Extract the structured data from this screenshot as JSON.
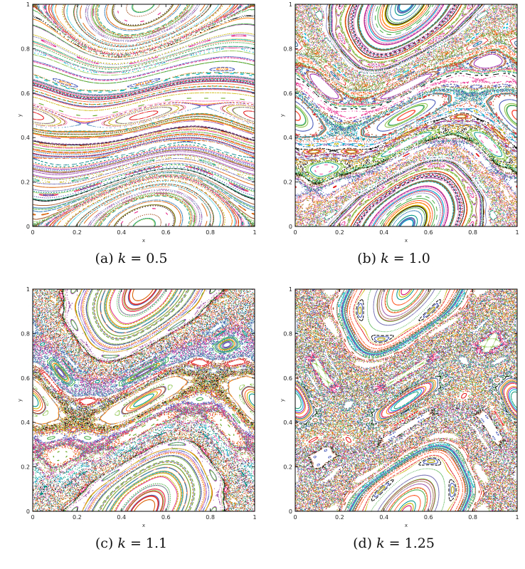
{
  "chart_data": [
    {
      "type": "scatter",
      "title": "",
      "xlabel": "x",
      "ylabel": "y",
      "xlim": [
        0,
        1
      ],
      "ylim": [
        0,
        1
      ],
      "xticks": [
        "0",
        "0.2",
        "0.4",
        "0.6",
        "0.8",
        "1"
      ],
      "yticks": [
        "0",
        "0.2",
        "0.4",
        "0.6",
        "0.8",
        "1"
      ],
      "grid": false,
      "k": 0.5,
      "caption": {
        "tag": "(a)",
        "var": "k",
        "eq": "= 0.5"
      }
    },
    {
      "type": "scatter",
      "title": "",
      "xlabel": "x",
      "ylabel": "y",
      "xlim": [
        0,
        1
      ],
      "ylim": [
        0,
        1
      ],
      "xticks": [
        "0",
        "0.2",
        "0.4",
        "0.6",
        "0.8",
        "1"
      ],
      "yticks": [
        "0",
        "0.2",
        "0.4",
        "0.6",
        "0.8",
        "1"
      ],
      "grid": false,
      "k": 1.0,
      "caption": {
        "tag": "(b)",
        "var": "k",
        "eq": "= 1.0"
      }
    },
    {
      "type": "scatter",
      "title": "",
      "xlabel": "x",
      "ylabel": "y",
      "xlim": [
        0,
        1
      ],
      "ylim": [
        0,
        1
      ],
      "xticks": [
        "0",
        "0.2",
        "0.4",
        "0.6",
        "0.8",
        "1"
      ],
      "yticks": [
        "0",
        "0.2",
        "0.4",
        "0.6",
        "0.8",
        "1"
      ],
      "grid": false,
      "k": 1.1,
      "caption": {
        "tag": "(c)",
        "var": "k",
        "eq": "= 1.1"
      }
    },
    {
      "type": "scatter",
      "title": "",
      "xlabel": "x",
      "ylabel": "y",
      "xlim": [
        0,
        1
      ],
      "ylim": [
        0,
        1
      ],
      "xticks": [
        "0",
        "0.2",
        "0.4",
        "0.6",
        "0.8",
        "1"
      ],
      "yticks": [
        "0",
        "0.2",
        "0.4",
        "0.6",
        "0.8",
        "1"
      ],
      "grid": false,
      "k": 1.25,
      "caption": {
        "tag": "(d)",
        "var": "k",
        "eq": "= 1.25"
      }
    }
  ],
  "palette": [
    "#e41a1c",
    "#377eb8",
    "#4daf4a",
    "#984ea3",
    "#ff7f00",
    "#c9b400",
    "#a65628",
    "#f781bf",
    "#1b9e77",
    "#d95f02",
    "#7570b3",
    "#e7298a",
    "#66a61e",
    "#00bcd4",
    "#000000",
    "#8bc34a",
    "#3f51b5",
    "#ff5722",
    "#9c27b0",
    "#009688"
  ]
}
